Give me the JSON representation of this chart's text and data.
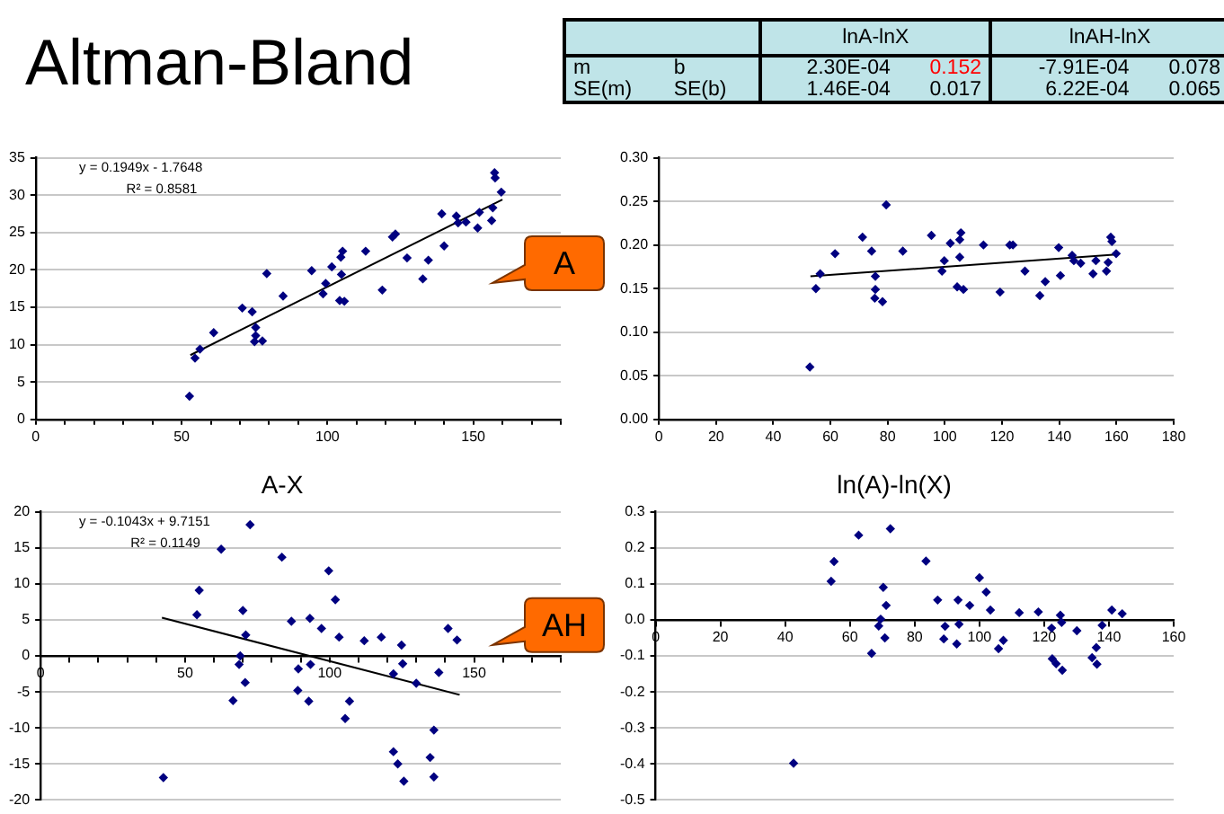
{
  "chart_data": [
    {
      "type": "other",
      "title": "Altman-Bland",
      "annotations": [
        "lnA-lnX",
        "lnAH-lnX",
        "m",
        "b",
        "2.30E-04",
        "0.152",
        "-7.91E-04",
        "0.078",
        "SE(m)",
        "SE(b)",
        "1.46E-04",
        "0.017",
        "6.22E-04",
        "0.065"
      ]
    },
    {
      "type": "scatter",
      "xlim": [
        0,
        180
      ],
      "ylim": [
        0,
        35
      ],
      "yticks": [
        0,
        5,
        10,
        15,
        20,
        25,
        30,
        35
      ],
      "xticks": [
        0,
        {
          "value": 10,
          "label": null
        },
        {
          "value": 20,
          "label": null
        },
        {
          "value": 30,
          "label": null
        },
        {
          "value": 40,
          "label": null
        },
        50,
        {
          "value": 60,
          "label": null
        },
        {
          "value": 70,
          "label": null
        },
        {
          "value": 80,
          "label": null
        },
        {
          "value": 90,
          "label": null
        },
        100,
        {
          "value": 110,
          "label": null
        },
        {
          "value": 120,
          "label": null
        },
        {
          "value": 130,
          "label": null
        },
        {
          "value": 140,
          "label": null
        },
        150,
        {
          "value": 160,
          "label": null
        },
        {
          "value": 170,
          "label": null
        },
        {
          "value": 180,
          "label": null
        }
      ],
      "grid": "y",
      "legend": false,
      "marker": "diamond",
      "annotations": [
        "y = 0.1949x - 1.7648",
        "R² = 0.8581",
        "A"
      ],
      "series": [
        {
          "color": "#000080",
          "x": [
            52.7,
            54.6,
            56.3,
            61.0,
            70.8,
            74.2,
            75.4,
            75.4,
            75.0,
            77.7,
            79.2,
            84.8,
            94.6,
            98.5,
            99.4,
            101.5,
            104.2,
            104.6,
            104.8,
            105.2,
            105.8,
            113.1,
            118.8,
            122.3,
            123.3,
            127.3,
            132.7,
            134.6,
            140.0,
            139.2,
            144.2,
            144.8,
            147.5,
            151.5,
            152.1,
            156.3,
            156.7,
            157.3,
            157.5,
            159.6
          ],
          "values": [
            3.1,
            8.2,
            9.4,
            11.6,
            14.9,
            14.4,
            12.3,
            11.2,
            10.4,
            10.5,
            19.5,
            16.5,
            19.9,
            16.8,
            18.2,
            20.4,
            15.9,
            21.7,
            19.4,
            22.5,
            15.8,
            22.5,
            17.3,
            24.4,
            24.8,
            21.6,
            18.8,
            21.3,
            23.2,
            27.5,
            27.2,
            26.3,
            26.4,
            25.6,
            27.7,
            26.6,
            28.3,
            33.0,
            32.3,
            30.4
          ]
        },
        {
          "type": "line",
          "marker": "none",
          "color": "#000000",
          "x": [
            53,
            160
          ],
          "values": [
            8.6,
            29.4
          ]
        }
      ]
    },
    {
      "type": "scatter",
      "xlim": [
        0,
        180
      ],
      "ylim": [
        0,
        0.3
      ],
      "yticks": [
        {
          "value": 0,
          "label": "0.00"
        },
        {
          "value": 0.05,
          "label": "0.05"
        },
        {
          "value": 0.1,
          "label": "0.10"
        },
        {
          "value": 0.15,
          "label": "0.15"
        },
        {
          "value": 0.2,
          "label": "0.20"
        },
        {
          "value": 0.25,
          "label": "0.25"
        },
        {
          "value": 0.3,
          "label": "0.30"
        }
      ],
      "xticks": [
        0,
        20,
        40,
        60,
        80,
        100,
        120,
        140,
        160,
        180
      ],
      "grid": "y",
      "legend": false,
      "marker": "diamond",
      "series": [
        {
          "color": "#000080",
          "x": [
            52.8,
            54.9,
            56.4,
            61.6,
            71.2,
            74.4,
            75.7,
            75.7,
            75.5,
            78.2,
            79.5,
            85.3,
            95.3,
            99.0,
            99.8,
            101.9,
            104.3,
            105.2,
            105.2,
            105.6,
            106.5,
            113.5,
            119.3,
            122.7,
            123.8,
            128.0,
            133.2,
            135.1,
            139.8,
            140.4,
            144.5,
            145.1,
            147.5,
            151.8,
            152.8,
            156.5,
            157.1,
            158.0,
            158.4,
            159.9
          ],
          "values": [
            0.06,
            0.15,
            0.167,
            0.19,
            0.209,
            0.193,
            0.164,
            0.149,
            0.139,
            0.135,
            0.246,
            0.193,
            0.211,
            0.17,
            0.182,
            0.202,
            0.152,
            0.186,
            0.206,
            0.214,
            0.149,
            0.2,
            0.146,
            0.2,
            0.2,
            0.17,
            0.142,
            0.158,
            0.197,
            0.165,
            0.188,
            0.182,
            0.179,
            0.167,
            0.182,
            0.17,
            0.18,
            0.209,
            0.204,
            0.19
          ]
        },
        {
          "type": "line",
          "marker": "none",
          "color": "#000000",
          "x": [
            53,
            160
          ],
          "values": [
            0.164,
            0.189
          ]
        }
      ]
    },
    {
      "type": "scatter",
      "title": "A-X",
      "xlim": [
        0,
        180
      ],
      "ylim": [
        -20,
        20
      ],
      "yticks": [
        -20,
        -15,
        -10,
        -5,
        0,
        5,
        10,
        15,
        20
      ],
      "xticks": [
        0,
        {
          "value": 10,
          "label": null
        },
        {
          "value": 20,
          "label": null
        },
        {
          "value": 30,
          "label": null
        },
        {
          "value": 40,
          "label": null
        },
        50,
        {
          "value": 60,
          "label": null
        },
        {
          "value": 70,
          "label": null
        },
        {
          "value": 80,
          "label": null
        },
        {
          "value": 90,
          "label": null
        },
        100,
        {
          "value": 110,
          "label": null
        },
        {
          "value": 120,
          "label": null
        },
        {
          "value": 130,
          "label": null
        },
        {
          "value": 140,
          "label": null
        },
        150,
        {
          "value": 160,
          "label": null
        },
        {
          "value": 170,
          "label": null
        },
        {
          "value": 180,
          "label": null
        }
      ],
      "grid": "y",
      "legend": false,
      "marker": "diamond",
      "annotations": [
        "y = -0.1043x + 9.7151",
        "R² = 0.1149",
        "AH"
      ],
      "series": [
        {
          "color": "#000080",
          "x": [
            42.5,
            54.1,
            54.9,
            62.5,
            66.6,
            68.7,
            69.1,
            70.0,
            71.0,
            70.8,
            72.5,
            83.5,
            86.8,
            89.2,
            89.0,
            92.8,
            93.2,
            93.4,
            97.2,
            99.7,
            102.0,
            103.3,
            105.4,
            106.9,
            112.0,
            117.9,
            122.1,
            122.1,
            123.6,
            124.9,
            125.3,
            125.7,
            130.0,
            134.8,
            136.1,
            136.1,
            137.8,
            141.0,
            144.1
          ],
          "values": [
            -16.9,
            5.7,
            9.1,
            14.8,
            -6.2,
            -1.2,
            0,
            6.3,
            2.9,
            -3.7,
            18.2,
            13.7,
            4.8,
            -1.8,
            -4.8,
            -6.3,
            5.2,
            -1.2,
            3.8,
            11.8,
            7.8,
            2.6,
            -8.7,
            -6.3,
            2.1,
            2.6,
            -2.5,
            -13.3,
            -15.0,
            1.5,
            -1.1,
            -17.4,
            -3.8,
            -14.1,
            -10.3,
            -16.8,
            -2.3,
            3.8,
            2.2
          ]
        },
        {
          "type": "line",
          "marker": "none",
          "color": "#000000",
          "x": [
            42,
            145
          ],
          "values": [
            5.3,
            -5.4
          ]
        }
      ]
    },
    {
      "type": "scatter",
      "title": "ln(A)-ln(X)",
      "xlim": [
        0,
        160
      ],
      "ylim": [
        -0.5,
        0.3
      ],
      "yticks": [
        -0.5,
        -0.4,
        -0.3,
        -0.2,
        -0.1,
        {
          "value": 0,
          "label": "0.0"
        },
        0.1,
        0.2,
        0.3
      ],
      "xticks": [
        0,
        20,
        40,
        60,
        80,
        100,
        120,
        140,
        160
      ],
      "grid": "y",
      "legend": false,
      "marker": "diamond",
      "series": [
        {
          "color": "#000080",
          "x": [
            42.6,
            54.2,
            55.1,
            62.7,
            66.7,
            68.9,
            69.5,
            70.3,
            70.8,
            71.2,
            72.5,
            83.5,
            87.1,
            89.0,
            89.4,
            93.0,
            93.4,
            93.7,
            97.0,
            100.0,
            102.1,
            103.4,
            105.9,
            107.4,
            112.3,
            118.2,
            122.3,
            122.5,
            123.7,
            125.0,
            125.4,
            125.6,
            130.1,
            134.8,
            136.1,
            136.3,
            137.9,
            140.9,
            144.1
          ],
          "values": [
            -0.398,
            0.107,
            0.162,
            0.235,
            -0.093,
            -0.017,
            0.002,
            0.09,
            -0.05,
            0.04,
            0.253,
            0.163,
            0.055,
            -0.053,
            -0.018,
            -0.067,
            0.055,
            -0.012,
            0.04,
            0.117,
            0.077,
            0.027,
            -0.08,
            -0.057,
            0.02,
            0.022,
            -0.023,
            -0.108,
            -0.122,
            0.013,
            -0.007,
            -0.14,
            -0.03,
            -0.105,
            -0.077,
            -0.123,
            -0.015,
            0.027,
            0.017
          ]
        }
      ]
    }
  ]
}
